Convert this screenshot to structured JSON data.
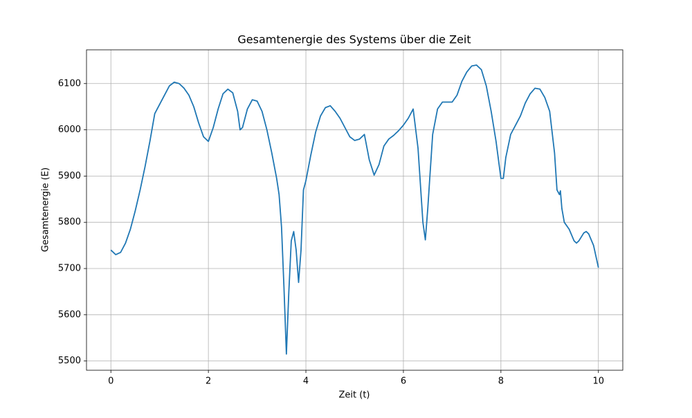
{
  "chart_data": {
    "type": "line",
    "title": "Gesamtenergie des Systems über die Zeit",
    "x_label": "Zeit (t)",
    "y_label": "Gesamtenergie (E)",
    "x": [
      0,
      0.1,
      0.2,
      0.3,
      0.4,
      0.5,
      0.6,
      0.7,
      0.8,
      0.9,
      1.0,
      1.1,
      1.2,
      1.3,
      1.4,
      1.5,
      1.6,
      1.7,
      1.8,
      1.9,
      2.0,
      2.1,
      2.2,
      2.3,
      2.4,
      2.5,
      2.6,
      2.65,
      2.7,
      2.8,
      2.9,
      3.0,
      3.1,
      3.2,
      3.3,
      3.4,
      3.45,
      3.5,
      3.55,
      3.6,
      3.65,
      3.7,
      3.75,
      3.8,
      3.85,
      3.9,
      3.95,
      4.0,
      4.1,
      4.2,
      4.3,
      4.4,
      4.5,
      4.6,
      4.7,
      4.8,
      4.9,
      5.0,
      5.1,
      5.2,
      5.3,
      5.4,
      5.5,
      5.6,
      5.7,
      5.8,
      5.9,
      6.0,
      6.1,
      6.2,
      6.3,
      6.4,
      6.45,
      6.5,
      6.6,
      6.7,
      6.8,
      6.9,
      7.0,
      7.1,
      7.2,
      7.3,
      7.4,
      7.5,
      7.6,
      7.7,
      7.8,
      7.9,
      8.0,
      8.05,
      8.1,
      8.2,
      8.3,
      8.4,
      8.5,
      8.6,
      8.7,
      8.8,
      8.9,
      9.0,
      9.1,
      9.15,
      9.2,
      9.22,
      9.25,
      9.3,
      9.4,
      9.5,
      9.55,
      9.6,
      9.7,
      9.75,
      9.8,
      9.9,
      10.0
    ],
    "series": [
      {
        "name": "Gesamtenergie",
        "color": "#1f77b4",
        "values": [
          5740,
          5730,
          5735,
          5755,
          5785,
          5825,
          5870,
          5920,
          5975,
          6035,
          6055,
          6075,
          6095,
          6103,
          6100,
          6090,
          6075,
          6050,
          6015,
          5985,
          5975,
          6005,
          6045,
          6078,
          6088,
          6080,
          6040,
          6000,
          6005,
          6045,
          6065,
          6062,
          6040,
          6000,
          5950,
          5895,
          5860,
          5790,
          5660,
          5515,
          5650,
          5760,
          5780,
          5740,
          5670,
          5740,
          5870,
          5890,
          5945,
          5995,
          6030,
          6048,
          6052,
          6040,
          6025,
          6005,
          5985,
          5977,
          5980,
          5990,
          5935,
          5902,
          5925,
          5965,
          5980,
          5988,
          5998,
          6010,
          6025,
          6045,
          5960,
          5800,
          5762,
          5830,
          5990,
          6045,
          6060,
          6060,
          6060,
          6075,
          6105,
          6125,
          6138,
          6140,
          6130,
          6095,
          6040,
          5975,
          5895,
          5895,
          5940,
          5990,
          6010,
          6030,
          6058,
          6078,
          6090,
          6088,
          6070,
          6040,
          5950,
          5870,
          5860,
          5868,
          5830,
          5800,
          5785,
          5760,
          5755,
          5760,
          5777,
          5780,
          5775,
          5750,
          5702
        ]
      }
    ],
    "xlim": [
      -0.5,
      10.5
    ],
    "ylim": [
      5480,
      6173
    ],
    "xticks": [
      0,
      2,
      4,
      6,
      8,
      10
    ],
    "yticks": [
      5500,
      5600,
      5700,
      5800,
      5900,
      6000,
      6100
    ],
    "grid": true
  }
}
